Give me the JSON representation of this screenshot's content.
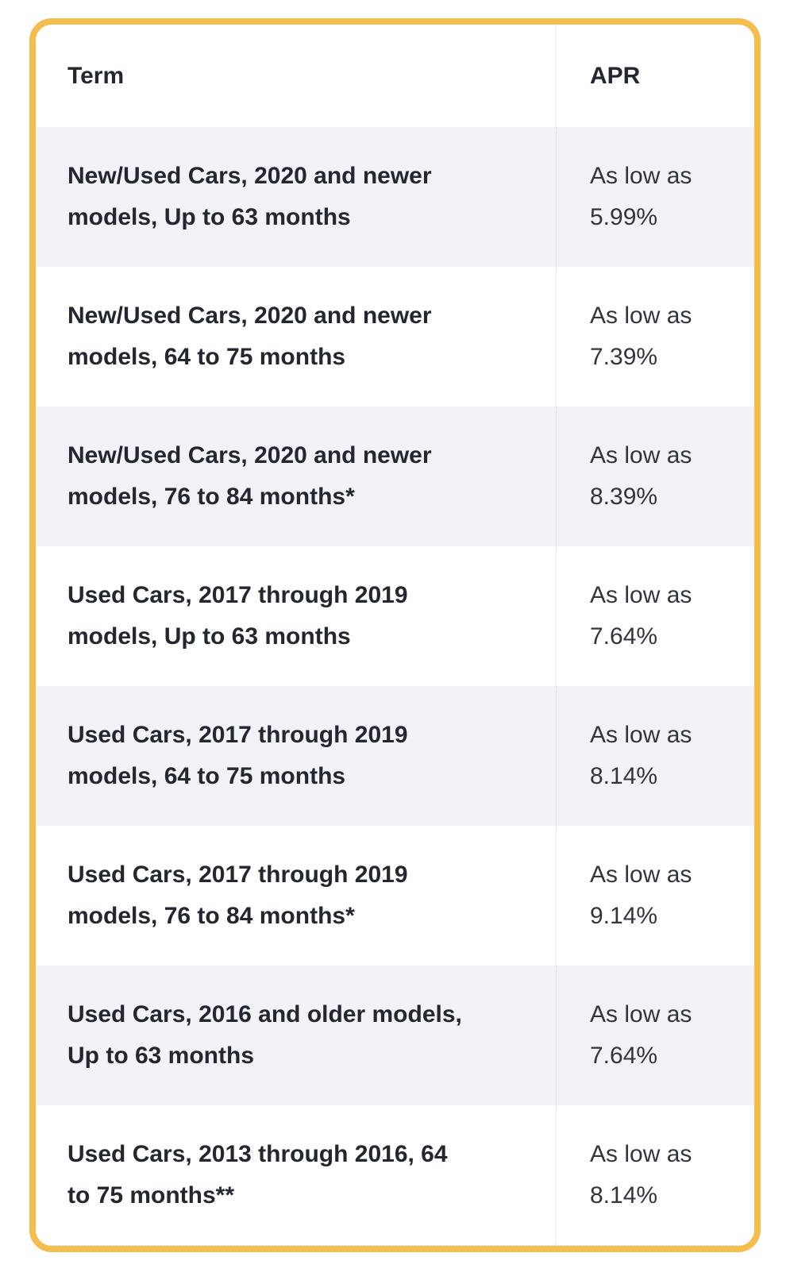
{
  "table": {
    "columns": [
      {
        "label": "Term"
      },
      {
        "label": "APR"
      }
    ],
    "rows": [
      {
        "term_line1": "New/Used Cars, 2020 and newer",
        "term_line2": "models, Up to 63 months",
        "apr_line1": "As low as",
        "apr_line2": "5.99%"
      },
      {
        "term_line1": "New/Used Cars, 2020 and newer",
        "term_line2": "models, 64 to 75 months",
        "apr_line1": "As low as",
        "apr_line2": "7.39%"
      },
      {
        "term_line1": "New/Used Cars, 2020 and newer",
        "term_line2": "models, 76 to 84 months*",
        "apr_line1": "As low as",
        "apr_line2": "8.39%"
      },
      {
        "term_line1": "Used Cars, 2017 through 2019",
        "term_line2": "models, Up to 63 months",
        "apr_line1": "As low as",
        "apr_line2": "7.64%"
      },
      {
        "term_line1": "Used Cars, 2017 through 2019",
        "term_line2": "models, 64 to 75 months",
        "apr_line1": "As low as",
        "apr_line2": "8.14%"
      },
      {
        "term_line1": "Used Cars, 2017 through 2019",
        "term_line2": "models, 76 to 84 months*",
        "apr_line1": "As low as",
        "apr_line2": "9.14%"
      },
      {
        "term_line1": "Used Cars, 2016 and older models,",
        "term_line2": "Up to 63 months",
        "apr_line1": "As low as",
        "apr_line2": "7.64%"
      },
      {
        "term_line1": "Used Cars, 2013 through 2016, 64",
        "term_line2": "to 75 months**",
        "apr_line1": "As low as",
        "apr_line2": "8.14%"
      }
    ]
  },
  "colors": {
    "border": "#F4BE4F",
    "stripe": "#F2F2F7",
    "heading_text": "#23272F",
    "body_text": "#30353E",
    "divider": "#DCDCE0"
  }
}
